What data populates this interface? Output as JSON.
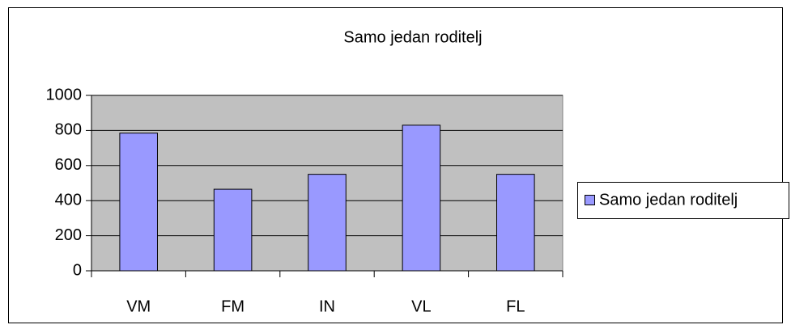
{
  "chart_data": {
    "type": "bar",
    "title": "Samo jedan roditelj",
    "categories": [
      "VM",
      "FM",
      "IN",
      "VL",
      "FL"
    ],
    "series": [
      {
        "name": "Samo jedan roditelj",
        "color": "#9999ff",
        "values": [
          785,
          465,
          550,
          830,
          550
        ]
      }
    ],
    "ylim": [
      0,
      1000
    ],
    "yticks": [
      0,
      200,
      400,
      600,
      800,
      1000
    ],
    "grid": true,
    "legend": "right"
  }
}
